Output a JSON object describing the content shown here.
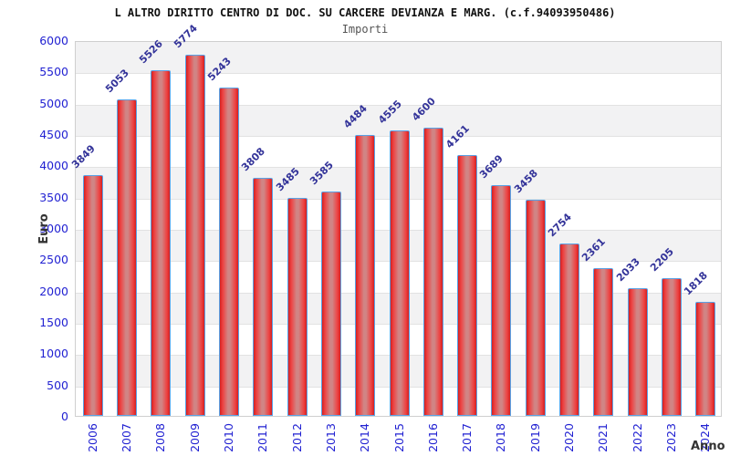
{
  "header": {
    "title": "L ALTRO DIRITTO CENTRO DI DOC. SU CARCERE DEVIANZA E MARG. (c.f.94093950486)",
    "subtitle": "Importi"
  },
  "chart_data": {
    "type": "bar",
    "title": "L ALTRO DIRITTO CENTRO DI DOC. SU CARCERE DEVIANZA E MARG. (c.f.94093950486)",
    "subtitle": "Importi",
    "xlabel": "Anno",
    "ylabel": "Euro",
    "categories": [
      "2006",
      "2007",
      "2008",
      "2009",
      "2010",
      "2011",
      "2012",
      "2013",
      "2014",
      "2015",
      "2016",
      "2017",
      "2018",
      "2019",
      "2020",
      "2021",
      "2022",
      "2023",
      "2024"
    ],
    "values": [
      3849,
      5053,
      5526,
      5774,
      5243,
      3808,
      3485,
      3585,
      4484,
      4555,
      4600,
      4161,
      3689,
      3458,
      2754,
      2361,
      2033,
      2205,
      1818
    ],
    "ylim": [
      0,
      6000
    ],
    "ytick_step": 500,
    "yticks": [
      0,
      500,
      1000,
      1500,
      2000,
      2500,
      3000,
      3500,
      4000,
      4500,
      5000,
      5500,
      6000
    ],
    "grid": "horizontal gridlines with alternating gray/white bands",
    "legend": "none",
    "value_labels": "rotated 45deg above each bar",
    "colors": {
      "bar_fill_edge": "#d42020",
      "bar_fill_bright": "#ee4343",
      "bar_fill_center": "#d08585",
      "bar_border": "#59a2e6",
      "tick_label": "#2222d2",
      "value_label": "#333399",
      "axis_title": "#333333",
      "band_gray": "#f2f2f3",
      "gridline": "#e2e2e2",
      "plot_border": "#cfcfcf",
      "title": "#111111",
      "subtitle": "#555555",
      "background": "#ffffff"
    }
  }
}
